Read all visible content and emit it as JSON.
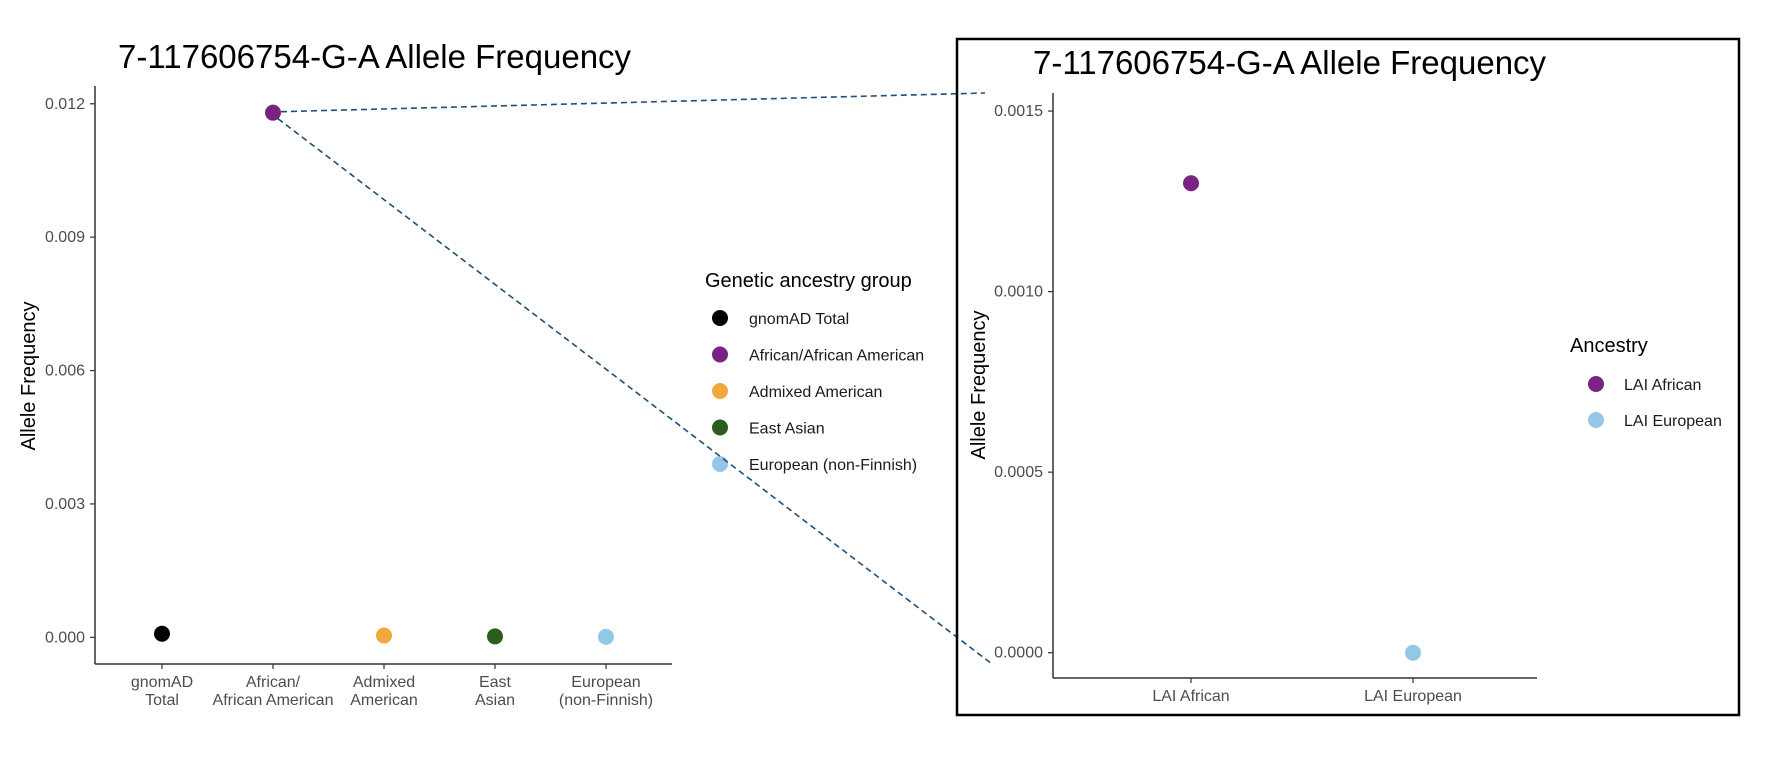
{
  "chart_data": [
    {
      "type": "scatter",
      "title": "7-117606754-G-A Allele Frequency",
      "xlabel": "",
      "ylabel": "Allele Frequency",
      "categories": [
        [
          "gnomAD",
          "Total"
        ],
        [
          "African/",
          "African American"
        ],
        [
          "Admixed",
          "American"
        ],
        [
          "East",
          "Asian"
        ],
        [
          "European",
          "(non-Finnish)"
        ]
      ],
      "values": [
        8e-05,
        0.0118,
        4e-05,
        2e-05,
        1e-05
      ],
      "colors": [
        "#000000",
        "#7B2382",
        "#F2A93B",
        "#2A5E1E",
        "#92C7E7"
      ],
      "ylim": [
        -0.0006,
        0.0124
      ],
      "yticks": [
        "0.000",
        "0.003",
        "0.006",
        "0.009",
        "0.012"
      ],
      "ytick_values": [
        0,
        0.003,
        0.006,
        0.009,
        0.012
      ],
      "grid": false,
      "legend": {
        "title": "Genetic ancestry group",
        "position": "right",
        "items": [
          {
            "label": "gnomAD Total",
            "color": "#000000"
          },
          {
            "label": "African/African American",
            "color": "#7B2382"
          },
          {
            "label": "Admixed American",
            "color": "#F2A93B"
          },
          {
            "label": "East Asian",
            "color": "#2A5E1E"
          },
          {
            "label": "European (non-Finnish)",
            "color": "#92C7E7"
          }
        ]
      }
    },
    {
      "type": "scatter",
      "title": "7-117606754-G-A Allele Frequency",
      "xlabel": "",
      "ylabel": "Allele Frequency",
      "categories": [
        "LAI African",
        "LAI European"
      ],
      "values": [
        0.0013,
        0.0
      ],
      "colors": [
        "#7B2382",
        "#92C7E7"
      ],
      "ylim": [
        -7e-05,
        0.00155
      ],
      "yticks": [
        "0.0000",
        "0.0005",
        "0.0010",
        "0.0015"
      ],
      "ytick_values": [
        0,
        0.0005,
        0.001,
        0.0015
      ],
      "grid": false,
      "legend": {
        "title": "Ancestry",
        "position": "right",
        "items": [
          {
            "label": "LAI African",
            "color": "#7B2382"
          },
          {
            "label": "LAI European",
            "color": "#92C7E7"
          }
        ]
      }
    }
  ],
  "zoom_connector": {
    "color": "#1F4E79",
    "style": "dashed"
  }
}
